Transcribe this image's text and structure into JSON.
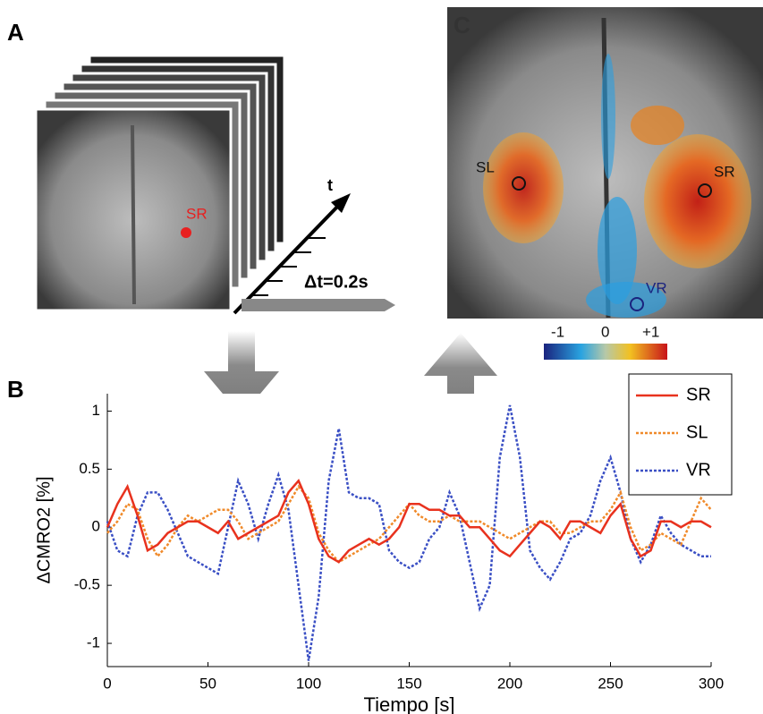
{
  "figure": {
    "panel_labels": [
      "A",
      "B",
      "C"
    ],
    "time_axis": "t",
    "time_step": "Δt=0.2s",
    "image_a_label": "SR",
    "image_c_labels": [
      "SL",
      "SR",
      "VR"
    ],
    "colorbar": [
      "-1",
      "0",
      "+1"
    ]
  },
  "chart_data": {
    "type": "line",
    "xlabel": "Tiempo [s]",
    "ylabel": "ΔCMRO2 [%]",
    "x": [
      0,
      5,
      10,
      15,
      20,
      25,
      30,
      35,
      40,
      45,
      50,
      55,
      60,
      65,
      70,
      75,
      80,
      85,
      90,
      95,
      100,
      105,
      110,
      115,
      120,
      125,
      130,
      135,
      140,
      145,
      150,
      155,
      160,
      165,
      170,
      175,
      180,
      185,
      190,
      195,
      200,
      205,
      210,
      215,
      220,
      225,
      230,
      235,
      240,
      245,
      250,
      255,
      260,
      265,
      270,
      275,
      280,
      285,
      290,
      295,
      300
    ],
    "xlim": [
      0,
      300
    ],
    "xticks": [
      0,
      50,
      100,
      150,
      200,
      250,
      300
    ],
    "ylim": [
      -1.2,
      1.15
    ],
    "yticks": [
      -1,
      -0.5,
      0,
      0.5,
      1
    ],
    "legend": "upper right",
    "series": [
      {
        "name": "SR",
        "color": "#e8321e",
        "dash": "solid",
        "values": [
          0,
          0.2,
          0.35,
          0.1,
          -0.2,
          -0.15,
          -0.05,
          0,
          0.05,
          0.05,
          0,
          -0.05,
          0.05,
          -0.1,
          -0.05,
          0,
          0.05,
          0.1,
          0.3,
          0.4,
          0.2,
          -0.1,
          -0.25,
          -0.3,
          -0.2,
          -0.15,
          -0.1,
          -0.15,
          -0.1,
          0,
          0.2,
          0.2,
          0.15,
          0.15,
          0.1,
          0.1,
          0,
          0,
          -0.1,
          -0.2,
          -0.25,
          -0.15,
          -0.05,
          0.05,
          0,
          -0.1,
          0.05,
          0.05,
          0,
          -0.05,
          0.1,
          0.2,
          -0.1,
          -0.25,
          -0.2,
          0.05,
          0.05,
          0,
          0.05,
          0.05,
          0
        ]
      },
      {
        "name": "SL",
        "color": "#f08a2a",
        "dash": "dotted",
        "values": [
          -0.05,
          0.05,
          0.2,
          0.15,
          -0.1,
          -0.25,
          -0.15,
          0,
          0.1,
          0.05,
          0.1,
          0.15,
          0.15,
          0.05,
          -0.1,
          -0.05,
          0,
          0.05,
          0.2,
          0.35,
          0.25,
          -0.05,
          -0.2,
          -0.3,
          -0.25,
          -0.2,
          -0.15,
          -0.1,
          0,
          0.1,
          0.2,
          0.1,
          0.05,
          0.05,
          0.1,
          0.05,
          0.05,
          0.05,
          0,
          -0.05,
          -0.1,
          -0.05,
          0,
          0.05,
          0.05,
          -0.05,
          -0.05,
          0,
          0.05,
          0.05,
          0.15,
          0.3,
          0,
          -0.2,
          -0.15,
          -0.05,
          -0.1,
          -0.15,
          0.05,
          0.25,
          0.15
        ]
      },
      {
        "name": "VR",
        "color": "#3a4fc4",
        "dash": "dotted",
        "values": [
          0.05,
          -0.2,
          -0.25,
          0.1,
          0.3,
          0.3,
          0.15,
          -0.05,
          -0.25,
          -0.3,
          -0.35,
          -0.4,
          0,
          0.4,
          0.2,
          -0.1,
          0.2,
          0.45,
          0.15,
          -0.5,
          -1.15,
          -0.6,
          0.4,
          0.85,
          0.3,
          0.25,
          0.25,
          0.2,
          -0.2,
          -0.3,
          -0.35,
          -0.3,
          -0.1,
          0,
          0.3,
          0.1,
          -0.3,
          -0.7,
          -0.5,
          0.6,
          1.05,
          0.6,
          -0.2,
          -0.35,
          -0.45,
          -0.3,
          -0.1,
          -0.05,
          0.1,
          0.4,
          0.6,
          0.3,
          -0.1,
          -0.3,
          -0.15,
          0.1,
          -0.05,
          -0.15,
          -0.2,
          -0.25,
          -0.25
        ]
      }
    ]
  }
}
